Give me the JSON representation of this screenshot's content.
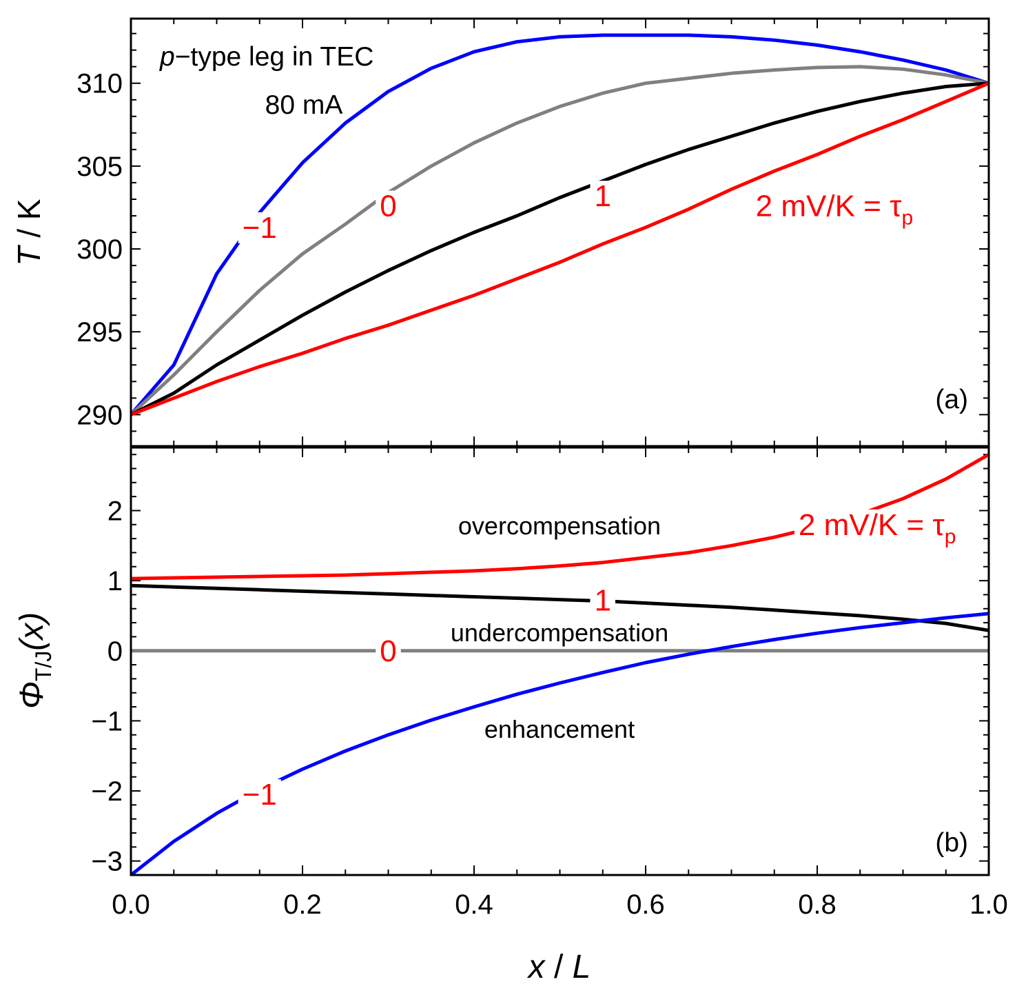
{
  "figure": {
    "xlabel_var": "x",
    "xlabel_sep": " / ",
    "xlabel_unit": "L",
    "x_ticks": [
      "0.0",
      "0.2",
      "0.4",
      "0.6",
      "0.8",
      "1.0"
    ],
    "x_tick_values": [
      0,
      0.2,
      0.4,
      0.6,
      0.8,
      1.0
    ]
  },
  "colors": {
    "blue": "#0000ff",
    "gray": "#808080",
    "black": "#000000",
    "red": "#ff0000"
  },
  "chart_data": [
    {
      "type": "line",
      "panel": "(a)",
      "ylabel_var": "T",
      "ylabel_sep": " / ",
      "ylabel_unit": "K",
      "annotation_italic": "p",
      "annotation_rest": "−type leg in TEC",
      "annotation_current": "80 mA",
      "xlim": [
        0,
        1
      ],
      "ylim": [
        288.1,
        313.9
      ],
      "y_ticks": [
        290,
        295,
        300,
        305,
        310
      ],
      "y_tick_labels": [
        "290",
        "295",
        "300",
        "305",
        "310"
      ],
      "x": [
        0,
        0.05,
        0.1,
        0.15,
        0.2,
        0.25,
        0.3,
        0.35,
        0.4,
        0.45,
        0.5,
        0.55,
        0.6,
        0.65,
        0.7,
        0.75,
        0.8,
        0.85,
        0.9,
        0.95,
        1.0
      ],
      "series": [
        {
          "color_key": "blue",
          "label": "−1",
          "values": [
            290.0,
            293.0,
            298.5,
            302.2,
            305.2,
            307.6,
            309.5,
            310.9,
            311.9,
            312.5,
            312.8,
            312.9,
            312.9,
            312.9,
            312.8,
            312.6,
            312.3,
            311.9,
            311.4,
            310.8,
            310.0
          ]
        },
        {
          "color_key": "gray",
          "label": "0",
          "values": [
            290.0,
            292.4,
            295.0,
            297.5,
            299.7,
            301.5,
            303.4,
            305.0,
            306.4,
            307.6,
            308.6,
            309.4,
            310.0,
            310.3,
            310.6,
            310.8,
            310.95,
            311.0,
            310.85,
            310.5,
            310.0
          ]
        },
        {
          "color_key": "black",
          "label": "1",
          "values": [
            290.0,
            291.3,
            293.0,
            294.5,
            296.0,
            297.4,
            298.7,
            299.9,
            301.0,
            302.0,
            303.1,
            304.1,
            305.1,
            306.0,
            306.8,
            307.6,
            308.3,
            308.9,
            309.4,
            309.8,
            310.0
          ]
        },
        {
          "color_key": "red",
          "label": "2 mV/K = τ",
          "label_sub": "p",
          "values": [
            290.0,
            291.0,
            292.0,
            292.9,
            293.7,
            294.6,
            295.4,
            296.3,
            297.2,
            298.2,
            299.2,
            300.3,
            301.3,
            302.4,
            303.6,
            304.7,
            305.7,
            306.8,
            307.8,
            308.9,
            310.0
          ]
        }
      ]
    },
    {
      "type": "line",
      "panel": "(b)",
      "ylabel_var": "Φ",
      "ylabel_sub": "T/J",
      "ylabel_arg": "(x)",
      "xlim": [
        0,
        1
      ],
      "ylim": [
        -3.2,
        2.9
      ],
      "y_ticks": [
        -3,
        -2,
        -1,
        0,
        1,
        2
      ],
      "y_tick_labels": [
        "−3",
        "−2",
        "−1",
        "0",
        "1",
        "2"
      ],
      "region_labels": [
        "overcompensation",
        "undercompensation",
        "enhancement"
      ],
      "x": [
        0,
        0.05,
        0.1,
        0.15,
        0.2,
        0.25,
        0.3,
        0.35,
        0.4,
        0.45,
        0.5,
        0.55,
        0.6,
        0.65,
        0.7,
        0.75,
        0.8,
        0.85,
        0.9,
        0.95,
        1.0
      ],
      "series": [
        {
          "color_key": "red",
          "label": "2 mV/K = τ",
          "label_sub": "p",
          "values": [
            1.03,
            1.04,
            1.05,
            1.06,
            1.07,
            1.08,
            1.1,
            1.12,
            1.14,
            1.17,
            1.21,
            1.26,
            1.33,
            1.4,
            1.5,
            1.62,
            1.77,
            1.95,
            2.17,
            2.45,
            2.8
          ]
        },
        {
          "color_key": "black",
          "label": "1",
          "values": [
            0.93,
            0.91,
            0.89,
            0.87,
            0.85,
            0.83,
            0.81,
            0.79,
            0.77,
            0.75,
            0.73,
            0.71,
            0.68,
            0.65,
            0.62,
            0.58,
            0.54,
            0.5,
            0.45,
            0.39,
            0.29
          ]
        },
        {
          "color_key": "gray",
          "label": "0",
          "values": [
            0,
            0,
            0,
            0,
            0,
            0,
            0,
            0,
            0,
            0,
            0,
            0,
            0,
            0,
            0,
            0,
            0,
            0,
            0,
            0,
            0
          ]
        },
        {
          "color_key": "blue",
          "label": "−1",
          "values": [
            -3.2,
            -2.72,
            -2.32,
            -1.98,
            -1.69,
            -1.43,
            -1.2,
            -0.99,
            -0.8,
            -0.62,
            -0.46,
            -0.31,
            -0.17,
            -0.05,
            0.06,
            0.16,
            0.25,
            0.33,
            0.4,
            0.47,
            0.53
          ]
        }
      ]
    }
  ]
}
